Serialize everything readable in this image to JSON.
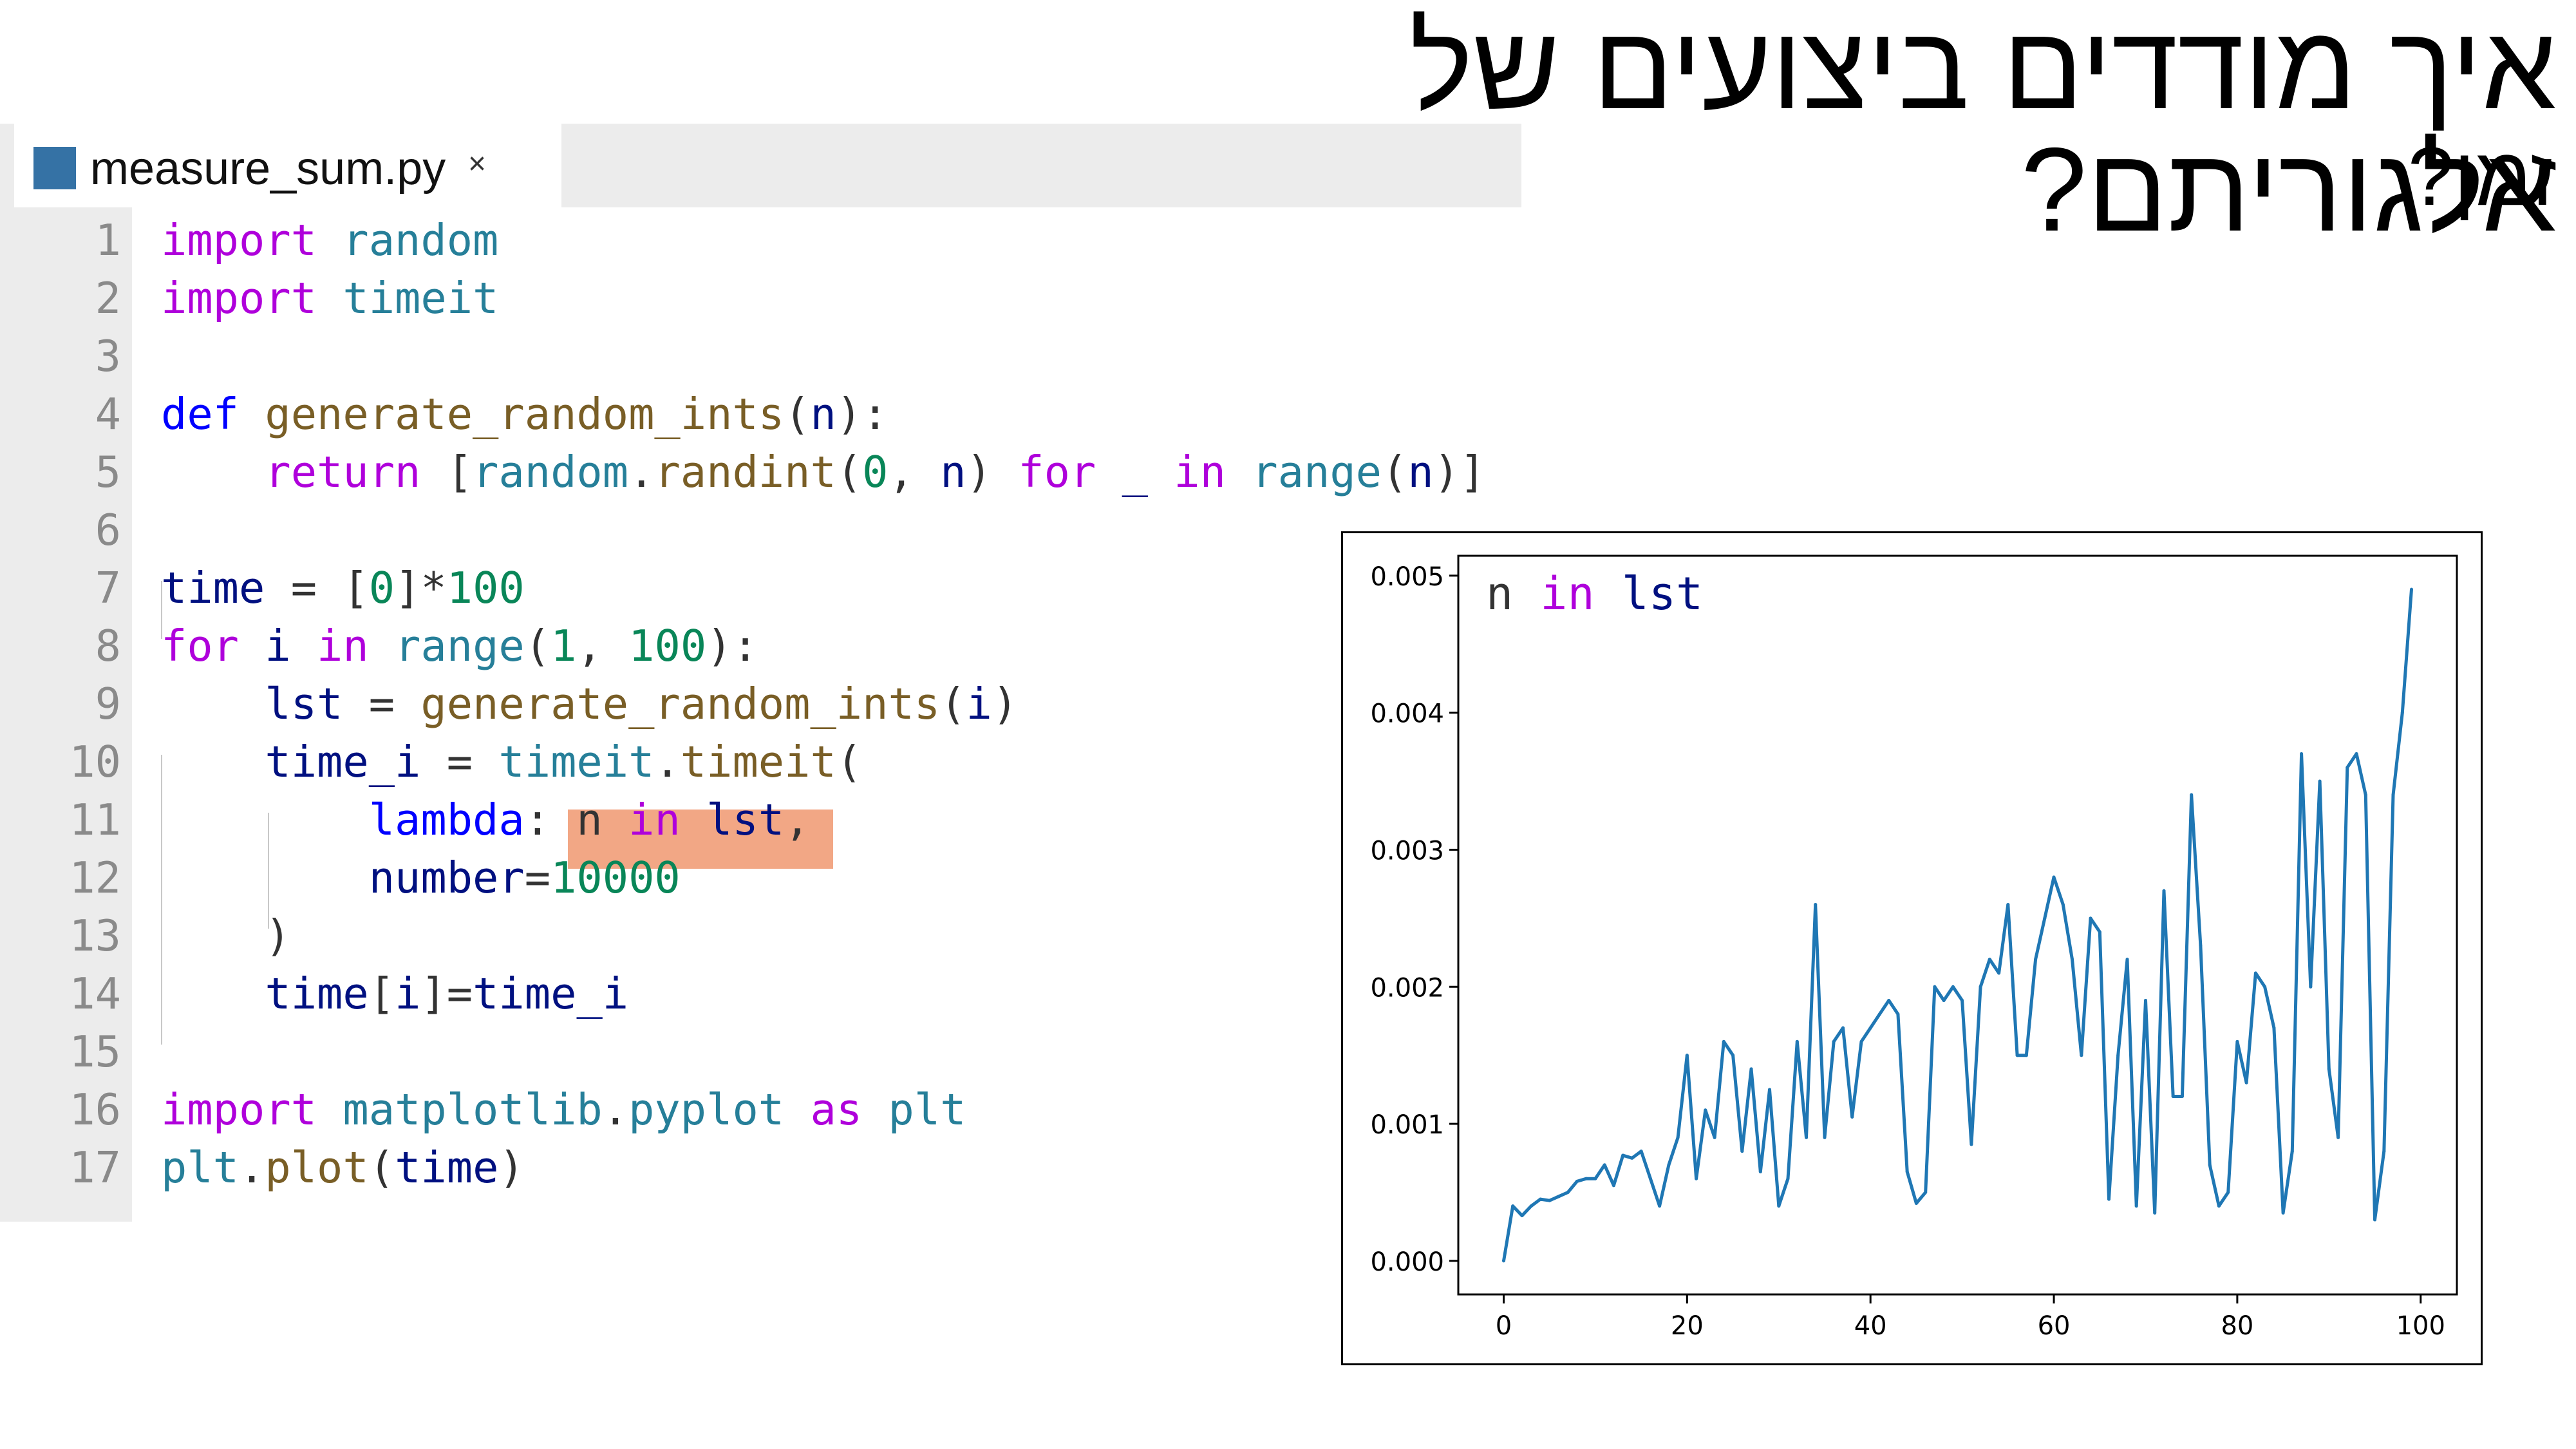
{
  "slide": {
    "title": "איך מודדים ביצועים של אלגוריתם?",
    "subtitle": "זמן?"
  },
  "editor": {
    "tab": {
      "filename": "measure_sum.py",
      "close_glyph": "×",
      "icon": "python-file-icon",
      "icon_color": "#3572a5"
    },
    "line_numbers": [
      "1",
      "2",
      "3",
      "4",
      "5",
      "6",
      "7",
      "8",
      "9",
      "10",
      "11",
      "12",
      "13",
      "14",
      "15",
      "16",
      "17"
    ],
    "code_lines": [
      [
        {
          "t": "import",
          "c": "kw"
        },
        {
          "t": " "
        },
        {
          "t": "random",
          "c": "mod"
        }
      ],
      [
        {
          "t": "import",
          "c": "kw"
        },
        {
          "t": " "
        },
        {
          "t": "timeit",
          "c": "mod"
        }
      ],
      [],
      [
        {
          "t": "def",
          "c": "df"
        },
        {
          "t": " "
        },
        {
          "t": "generate_random_ints",
          "c": "fn"
        },
        {
          "t": "(",
          "c": "pu"
        },
        {
          "t": "n",
          "c": "var"
        },
        {
          "t": "):",
          "c": "pu"
        }
      ],
      [
        {
          "t": "    "
        },
        {
          "t": "return",
          "c": "kw"
        },
        {
          "t": " [",
          "c": "pu"
        },
        {
          "t": "random",
          "c": "mod"
        },
        {
          "t": ".",
          "c": "pu"
        },
        {
          "t": "randint",
          "c": "fn"
        },
        {
          "t": "(",
          "c": "pu"
        },
        {
          "t": "0",
          "c": "num"
        },
        {
          "t": ", ",
          "c": "pu"
        },
        {
          "t": "n",
          "c": "var"
        },
        {
          "t": ") ",
          "c": "pu"
        },
        {
          "t": "for",
          "c": "kw"
        },
        {
          "t": " ",
          "c": "pu"
        },
        {
          "t": "_",
          "c": "var"
        },
        {
          "t": " ",
          "c": "pu"
        },
        {
          "t": "in",
          "c": "kw"
        },
        {
          "t": " ",
          "c": "pu"
        },
        {
          "t": "range",
          "c": "mod"
        },
        {
          "t": "(",
          "c": "pu"
        },
        {
          "t": "n",
          "c": "var"
        },
        {
          "t": ")]",
          "c": "pu"
        }
      ],
      [],
      [
        {
          "t": "time",
          "c": "var"
        },
        {
          "t": " = [",
          "c": "pu"
        },
        {
          "t": "0",
          "c": "num"
        },
        {
          "t": "]*",
          "c": "pu"
        },
        {
          "t": "100",
          "c": "num"
        }
      ],
      [
        {
          "t": "for",
          "c": "kw"
        },
        {
          "t": " "
        },
        {
          "t": "i",
          "c": "var"
        },
        {
          "t": " "
        },
        {
          "t": "in",
          "c": "kw"
        },
        {
          "t": " "
        },
        {
          "t": "range",
          "c": "mod"
        },
        {
          "t": "(",
          "c": "pu"
        },
        {
          "t": "1",
          "c": "num"
        },
        {
          "t": ", ",
          "c": "pu"
        },
        {
          "t": "100",
          "c": "num"
        },
        {
          "t": "):",
          "c": "pu"
        }
      ],
      [
        {
          "t": "    "
        },
        {
          "t": "lst",
          "c": "var"
        },
        {
          "t": " = ",
          "c": "pu"
        },
        {
          "t": "generate_random_ints",
          "c": "fn"
        },
        {
          "t": "(",
          "c": "pu"
        },
        {
          "t": "i",
          "c": "var"
        },
        {
          "t": ")",
          "c": "pu"
        }
      ],
      [
        {
          "t": "    "
        },
        {
          "t": "time_i",
          "c": "var"
        },
        {
          "t": " = ",
          "c": "pu"
        },
        {
          "t": "timeit",
          "c": "mod"
        },
        {
          "t": ".",
          "c": "pu"
        },
        {
          "t": "timeit",
          "c": "fn"
        },
        {
          "t": "(",
          "c": "pu"
        }
      ],
      [
        {
          "t": "        "
        },
        {
          "t": "lambda",
          "c": "df"
        },
        {
          "t": ": ",
          "c": "pu"
        },
        {
          "t": "n",
          "c": "pu"
        },
        {
          "t": " "
        },
        {
          "t": "in",
          "c": "kw"
        },
        {
          "t": " "
        },
        {
          "t": "lst",
          "c": "var"
        },
        {
          "t": ",",
          "c": "pu"
        }
      ],
      [
        {
          "t": "        "
        },
        {
          "t": "number",
          "c": "var"
        },
        {
          "t": "=",
          "c": "pu"
        },
        {
          "t": "10000",
          "c": "num"
        }
      ],
      [
        {
          "t": "    "
        },
        {
          "t": ")",
          "c": "pu"
        }
      ],
      [
        {
          "t": "    "
        },
        {
          "t": "time",
          "c": "var"
        },
        {
          "t": "[",
          "c": "pu"
        },
        {
          "t": "i",
          "c": "var"
        },
        {
          "t": "]=",
          "c": "pu"
        },
        {
          "t": "time_i",
          "c": "var"
        }
      ],
      [],
      [
        {
          "t": "import",
          "c": "kw"
        },
        {
          "t": " "
        },
        {
          "t": "matplotlib",
          "c": "mod"
        },
        {
          "t": ".",
          "c": "pu"
        },
        {
          "t": "pyplot",
          "c": "mod"
        },
        {
          "t": " "
        },
        {
          "t": "as",
          "c": "kw"
        },
        {
          "t": " "
        },
        {
          "t": "plt",
          "c": "mod"
        }
      ],
      [
        {
          "t": "plt",
          "c": "mod"
        },
        {
          "t": ".",
          "c": "pu"
        },
        {
          "t": "plot",
          "c": "fn"
        },
        {
          "t": "(",
          "c": "pu"
        },
        {
          "t": "time",
          "c": "var"
        },
        {
          "t": ")",
          "c": "pu"
        }
      ]
    ],
    "highlight_color": "#f2a785"
  },
  "chart_data": {
    "type": "line",
    "annotation": [
      {
        "t": "n ",
        "c": "pu"
      },
      {
        "t": "in",
        "c": "kw"
      },
      {
        "t": " lst",
        "c": "var"
      }
    ],
    "title": "",
    "xlabel": "",
    "ylabel": "",
    "xlim": [
      -4.95,
      103.95
    ],
    "ylim": [
      -0.000245,
      0.005145
    ],
    "xticks": [
      0,
      20,
      40,
      60,
      80,
      100
    ],
    "xtick_labels": [
      "0",
      "20",
      "40",
      "60",
      "80",
      "100"
    ],
    "yticks": [
      0.0,
      0.001,
      0.002,
      0.003,
      0.004,
      0.005
    ],
    "ytick_labels": [
      "0.000",
      "0.001",
      "0.002",
      "0.003",
      "0.004",
      "0.005"
    ],
    "grid": false,
    "line_color": "#1f77b4",
    "series": [
      {
        "x": [
          0,
          1,
          2,
          3,
          4,
          5,
          6,
          7,
          8,
          9,
          10,
          11,
          12,
          13,
          14,
          15,
          16,
          17,
          18,
          19,
          20,
          21,
          22,
          23,
          24,
          25,
          26,
          27,
          28,
          29,
          30,
          31,
          32,
          33,
          34,
          35,
          36,
          37,
          38,
          39,
          40,
          41,
          42,
          43,
          44,
          45,
          46,
          47,
          48,
          49,
          50,
          51,
          52,
          53,
          54,
          55,
          56,
          57,
          58,
          59,
          60,
          61,
          62,
          63,
          64,
          65,
          66,
          67,
          68,
          69,
          70,
          71,
          72,
          73,
          74,
          75,
          76,
          77,
          78,
          79,
          80,
          81,
          82,
          83,
          84,
          85,
          86,
          87,
          88,
          89,
          90,
          91,
          92,
          93,
          94,
          95,
          96,
          97,
          98,
          99
        ],
        "values": [
          0.0,
          0.0004,
          0.00033,
          0.0004,
          0.00045,
          0.00044,
          0.00047,
          0.0005,
          0.00058,
          0.0006,
          0.0006,
          0.0007,
          0.00055,
          0.00077,
          0.00075,
          0.0008,
          0.0006,
          0.0004,
          0.0007,
          0.0009,
          0.0015,
          0.0006,
          0.0011,
          0.0009,
          0.0016,
          0.0015,
          0.0008,
          0.0014,
          0.00065,
          0.00125,
          0.0004,
          0.0006,
          0.0016,
          0.0009,
          0.0026,
          0.0009,
          0.0016,
          0.0017,
          0.00105,
          0.0016,
          0.0017,
          0.0018,
          0.0019,
          0.0018,
          0.00065,
          0.00042,
          0.0005,
          0.002,
          0.0019,
          0.002,
          0.0019,
          0.00085,
          0.002,
          0.0022,
          0.0021,
          0.0026,
          0.0015,
          0.0015,
          0.0022,
          0.0025,
          0.0028,
          0.0026,
          0.0022,
          0.0015,
          0.0025,
          0.0024,
          0.00045,
          0.0015,
          0.0022,
          0.0004,
          0.0019,
          0.00035,
          0.0027,
          0.0012,
          0.0012,
          0.0034,
          0.0023,
          0.0007,
          0.0004,
          0.0005,
          0.0016,
          0.0013,
          0.0021,
          0.002,
          0.0017,
          0.00035,
          0.0008,
          0.0037,
          0.002,
          0.0035,
          0.0014,
          0.0009,
          0.0036,
          0.0037,
          0.0034,
          0.0003,
          0.0008,
          0.0034,
          0.004,
          0.0049
        ]
      }
    ]
  }
}
